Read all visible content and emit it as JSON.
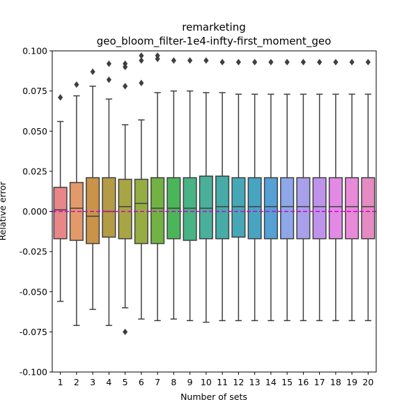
{
  "chart_data": {
    "type": "boxplot",
    "title": "remarketing",
    "subtitle": "geo_bloom_filter-1e4-infty-first_moment_geo",
    "xlabel": "Number of sets",
    "ylabel": "Relative error",
    "ylim": [
      -0.1,
      0.1
    ],
    "yticks": [
      "-0.100",
      "-0.075",
      "-0.050",
      "-0.025",
      "0.000",
      "0.025",
      "0.050",
      "0.075",
      "0.100"
    ],
    "reference_line": {
      "y": 0.0,
      "style": "dashed",
      "color": "#cc00cc"
    },
    "grid": false,
    "categories": [
      "1",
      "2",
      "3",
      "4",
      "5",
      "6",
      "7",
      "8",
      "9",
      "10",
      "11",
      "12",
      "13",
      "14",
      "15",
      "16",
      "17",
      "18",
      "19",
      "20"
    ],
    "colors": [
      "#e8868a",
      "#e39a6a",
      "#c9944a",
      "#b59b45",
      "#a8a544",
      "#96ad43",
      "#72b243",
      "#4bb55a",
      "#48b384",
      "#4ab09b",
      "#47aca8",
      "#46a8b6",
      "#48a5c2",
      "#55a0d5",
      "#8da7e8",
      "#a8a0ea",
      "#c093ea",
      "#e28ae6",
      "#e88ad8",
      "#e68ac4"
    ],
    "boxes": [
      {
        "q1": -0.017,
        "median": 0.001,
        "q3": 0.015,
        "whislo": -0.056,
        "whishi": 0.056,
        "fliers": [
          0.071
        ]
      },
      {
        "q1": -0.018,
        "median": 0.002,
        "q3": 0.018,
        "whislo": -0.071,
        "whishi": 0.072,
        "fliers": [
          0.079
        ]
      },
      {
        "q1": -0.02,
        "median": -0.003,
        "q3": 0.021,
        "whislo": -0.061,
        "whishi": 0.078,
        "fliers": [
          0.087
        ]
      },
      {
        "q1": -0.016,
        "median": 0.0,
        "q3": 0.021,
        "whislo": -0.071,
        "whishi": 0.07,
        "fliers": [
          0.082,
          0.092
        ]
      },
      {
        "q1": -0.017,
        "median": 0.003,
        "q3": 0.02,
        "whislo": -0.06,
        "whishi": 0.054,
        "fliers": [
          -0.075,
          0.078,
          0.09,
          0.092
        ]
      },
      {
        "q1": -0.02,
        "median": 0.005,
        "q3": 0.02,
        "whislo": -0.067,
        "whishi": 0.057,
        "fliers": [
          0.08,
          0.094,
          0.097
        ]
      },
      {
        "q1": -0.02,
        "median": 0.002,
        "q3": 0.021,
        "whislo": -0.068,
        "whishi": 0.074,
        "fliers": [
          0.095,
          0.097
        ]
      },
      {
        "q1": -0.017,
        "median": 0.002,
        "q3": 0.021,
        "whislo": -0.067,
        "whishi": 0.075,
        "fliers": [
          0.094
        ]
      },
      {
        "q1": -0.018,
        "median": 0.002,
        "q3": 0.021,
        "whislo": -0.068,
        "whishi": 0.075,
        "fliers": [
          0.094
        ]
      },
      {
        "q1": -0.017,
        "median": 0.002,
        "q3": 0.022,
        "whislo": -0.069,
        "whishi": 0.074,
        "fliers": [
          0.094
        ]
      },
      {
        "q1": -0.017,
        "median": 0.003,
        "q3": 0.022,
        "whislo": -0.068,
        "whishi": 0.074,
        "fliers": [
          0.093
        ]
      },
      {
        "q1": -0.016,
        "median": 0.003,
        "q3": 0.021,
        "whislo": -0.068,
        "whishi": 0.073,
        "fliers": [
          0.093
        ]
      },
      {
        "q1": -0.017,
        "median": 0.003,
        "q3": 0.021,
        "whislo": -0.068,
        "whishi": 0.073,
        "fliers": [
          0.093
        ]
      },
      {
        "q1": -0.017,
        "median": 0.003,
        "q3": 0.021,
        "whislo": -0.068,
        "whishi": 0.073,
        "fliers": [
          0.093
        ]
      },
      {
        "q1": -0.017,
        "median": 0.003,
        "q3": 0.021,
        "whislo": -0.068,
        "whishi": 0.073,
        "fliers": [
          0.093
        ]
      },
      {
        "q1": -0.017,
        "median": 0.003,
        "q3": 0.021,
        "whislo": -0.068,
        "whishi": 0.073,
        "fliers": [
          0.093
        ]
      },
      {
        "q1": -0.017,
        "median": 0.003,
        "q3": 0.021,
        "whislo": -0.068,
        "whishi": 0.073,
        "fliers": [
          0.093
        ]
      },
      {
        "q1": -0.017,
        "median": 0.003,
        "q3": 0.021,
        "whislo": -0.068,
        "whishi": 0.073,
        "fliers": [
          0.093
        ]
      },
      {
        "q1": -0.017,
        "median": 0.003,
        "q3": 0.021,
        "whislo": -0.068,
        "whishi": 0.073,
        "fliers": [
          0.093
        ]
      },
      {
        "q1": -0.017,
        "median": 0.003,
        "q3": 0.021,
        "whislo": -0.068,
        "whishi": 0.073,
        "fliers": [
          0.093
        ]
      }
    ]
  }
}
